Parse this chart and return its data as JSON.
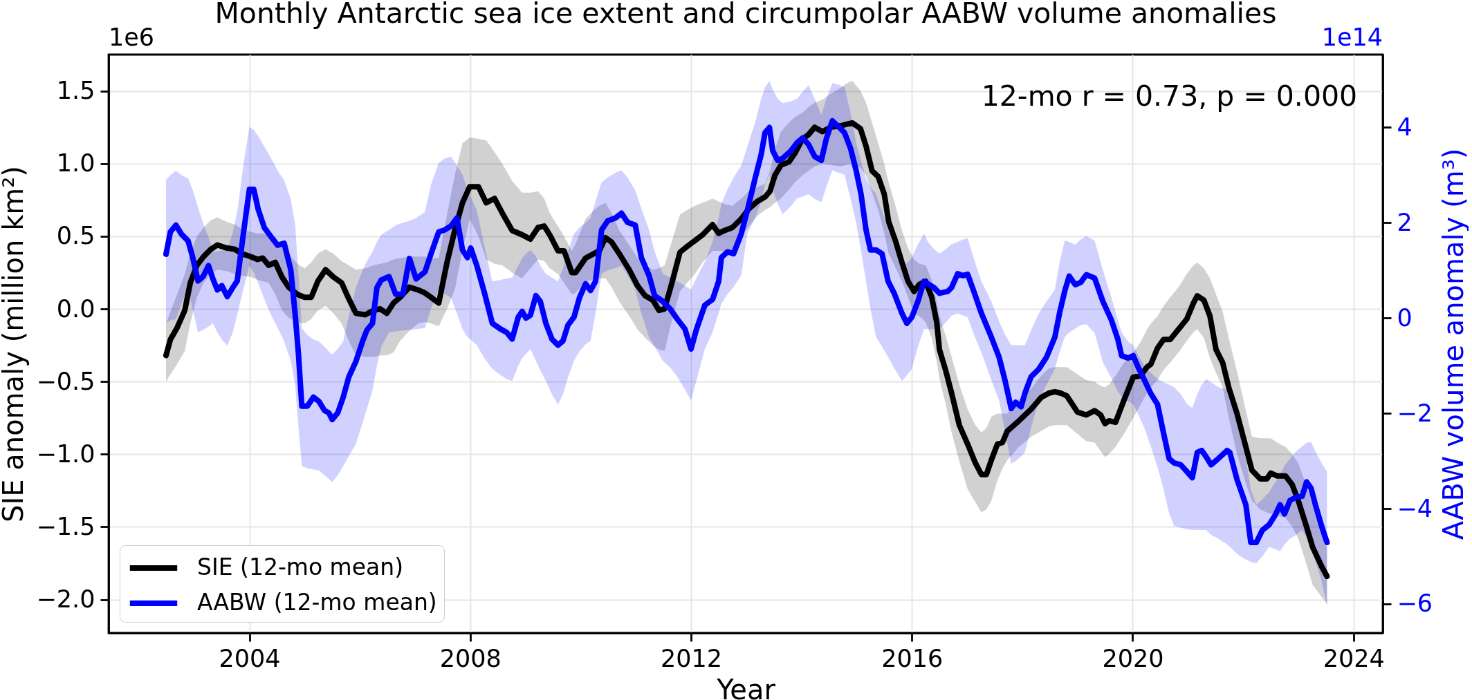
{
  "chart_data": {
    "type": "line",
    "title": "Monthly Antarctic sea ice extent and circumpolar AABW volume anomalies",
    "xlabel": "Year",
    "ylabel": "SIE anomaly (million km²)",
    "y2label": "AABW volume anomaly (m³)",
    "annotations": [
      "12-mo r = 0.73, p = 0.000",
      "1e6",
      "1e14"
    ],
    "xlim": [
      2001.45,
      2024.53
    ],
    "xticks": [
      2004,
      2008,
      2012,
      2016,
      2020,
      2024
    ],
    "ylim": [
      -2.23,
      1.75
    ],
    "yticks": [
      {
        "value": -2,
        "label": "−2.0"
      },
      -1.5,
      {
        "value": -1,
        "label": "−1.0"
      },
      -0.5,
      {
        "value": 0,
        "label": "0.0"
      },
      0.5,
      {
        "value": 1,
        "label": "1.0"
      },
      1.5
    ],
    "y2lim": [
      -6.61,
      5.53
    ],
    "y2ticks": [
      -6,
      -4,
      -2,
      0,
      2,
      4
    ],
    "grid": true,
    "legend": "bottom left",
    "series": [
      {
        "name": "SIE (12-mo mean)",
        "color": "#000000",
        "x": [
          2002.49,
          2002.57,
          2002.69,
          2002.83,
          2002.93,
          2003.05,
          2003.17,
          2003.3,
          2003.42,
          2003.58,
          2003.74,
          2003.86,
          2004.02,
          2004.15,
          2004.24,
          2004.35,
          2004.47,
          2004.59,
          2004.71,
          2004.87,
          2005.0,
          2005.12,
          2005.24,
          2005.38,
          2005.52,
          2005.67,
          2005.8,
          2005.93,
          2006.1,
          2006.25,
          2006.37,
          2006.49,
          2006.61,
          2006.73,
          2006.9,
          2007.06,
          2007.18,
          2007.29,
          2007.43,
          2007.58,
          2007.72,
          2007.86,
          2007.99,
          2008.15,
          2008.29,
          2008.44,
          2008.58,
          2008.76,
          2008.94,
          2009.09,
          2009.23,
          2009.34,
          2009.44,
          2009.59,
          2009.7,
          2009.84,
          2009.91,
          2010.09,
          2010.24,
          2010.34,
          2010.45,
          2010.56,
          2010.7,
          2010.88,
          2011.03,
          2011.17,
          2011.31,
          2011.42,
          2011.52,
          2011.64,
          2011.8,
          2011.93,
          2012.07,
          2012.21,
          2012.39,
          2012.5,
          2012.61,
          2012.75,
          2012.91,
          2013.05,
          2013.2,
          2013.34,
          2013.43,
          2013.52,
          2013.63,
          2013.77,
          2013.88,
          2014.02,
          2014.13,
          2014.24,
          2014.38,
          2014.53,
          2014.71,
          2014.81,
          2014.92,
          2015.07,
          2015.17,
          2015.28,
          2015.39,
          2015.5,
          2015.58,
          2015.71,
          2015.82,
          2015.93,
          2016.04,
          2016.14,
          2016.25,
          2016.36,
          2016.45,
          2016.5,
          2016.61,
          2016.72,
          2016.86,
          2017.01,
          2017.15,
          2017.26,
          2017.35,
          2017.44,
          2017.55,
          2017.64,
          2017.73,
          2017.94,
          2018.16,
          2018.34,
          2018.48,
          2018.59,
          2018.7,
          2018.81,
          2019.0,
          2019.16,
          2019.31,
          2019.42,
          2019.5,
          2019.57,
          2019.69,
          2019.84,
          2020.01,
          2020.14,
          2020.26,
          2020.33,
          2020.45,
          2020.56,
          2020.68,
          2020.83,
          2020.98,
          2021.1,
          2021.17,
          2021.29,
          2021.4,
          2021.51,
          2021.63,
          2021.74,
          2021.89,
          2022.05,
          2022.16,
          2022.31,
          2022.43,
          2022.5,
          2022.62,
          2022.77,
          2022.89,
          2023.0,
          2023.15,
          2023.26,
          2023.42,
          2023.52
        ],
        "values": [
          -0.32,
          -0.21,
          -0.13,
          -0.01,
          0.18,
          0.3,
          0.36,
          0.41,
          0.44,
          0.42,
          0.41,
          0.38,
          0.36,
          0.34,
          0.35,
          0.3,
          0.32,
          0.22,
          0.15,
          0.1,
          0.08,
          0.08,
          0.19,
          0.27,
          0.22,
          0.18,
          0.07,
          -0.03,
          -0.04,
          -0.01,
          0.0,
          -0.03,
          0.04,
          0.08,
          0.15,
          0.13,
          0.11,
          0.08,
          0.04,
          0.32,
          0.54,
          0.73,
          0.84,
          0.84,
          0.73,
          0.76,
          0.66,
          0.54,
          0.51,
          0.48,
          0.56,
          0.57,
          0.51,
          0.4,
          0.4,
          0.25,
          0.25,
          0.35,
          0.38,
          0.4,
          0.49,
          0.46,
          0.38,
          0.27,
          0.16,
          0.09,
          0.06,
          -0.01,
          0.0,
          0.16,
          0.39,
          0.43,
          0.47,
          0.51,
          0.58,
          0.52,
          0.54,
          0.56,
          0.62,
          0.69,
          0.74,
          0.77,
          0.81,
          0.92,
          0.99,
          1.01,
          1.07,
          1.17,
          1.2,
          1.25,
          1.22,
          1.25,
          1.26,
          1.27,
          1.28,
          1.24,
          1.12,
          0.95,
          0.91,
          0.79,
          0.6,
          0.46,
          0.32,
          0.19,
          0.12,
          0.17,
          0.19,
          0.08,
          -0.09,
          -0.28,
          -0.42,
          -0.58,
          -0.8,
          -0.93,
          -1.06,
          -1.14,
          -1.14,
          -1.04,
          -0.93,
          -0.92,
          -0.84,
          -0.77,
          -0.69,
          -0.61,
          -0.58,
          -0.57,
          -0.58,
          -0.6,
          -0.71,
          -0.73,
          -0.7,
          -0.73,
          -0.79,
          -0.77,
          -0.78,
          -0.63,
          -0.47,
          -0.46,
          -0.4,
          -0.38,
          -0.27,
          -0.21,
          -0.21,
          -0.14,
          -0.07,
          0.04,
          0.09,
          0.06,
          -0.05,
          -0.28,
          -0.37,
          -0.54,
          -0.72,
          -0.95,
          -1.11,
          -1.17,
          -1.17,
          -1.13,
          -1.15,
          -1.15,
          -1.21,
          -1.32,
          -1.5,
          -1.64,
          -1.77,
          -1.84
        ],
        "lower": [
          -0.5,
          -0.45,
          -0.38,
          -0.29,
          -0.1,
          0.08,
          0.18,
          0.24,
          0.27,
          0.26,
          0.24,
          0.23,
          0.22,
          0.2,
          0.19,
          0.18,
          0.1,
          -0.01,
          -0.06,
          -0.09,
          -0.1,
          -0.07,
          -0.01,
          0.02,
          -0.03,
          -0.1,
          -0.22,
          -0.32,
          -0.33,
          -0.33,
          -0.32,
          -0.32,
          -0.3,
          -0.22,
          -0.15,
          -0.1,
          -0.09,
          -0.1,
          -0.12,
          0.0,
          0.13,
          0.4,
          0.62,
          0.5,
          0.34,
          0.31,
          0.3,
          0.25,
          0.21,
          0.28,
          0.34,
          0.33,
          0.28,
          0.24,
          0.18,
          0.1,
          0.11,
          0.19,
          0.2,
          0.21,
          0.21,
          0.15,
          0.05,
          -0.05,
          -0.14,
          -0.2,
          -0.25,
          -0.28,
          -0.29,
          -0.1,
          0.12,
          0.18,
          0.24,
          0.32,
          0.4,
          0.4,
          0.4,
          0.4,
          0.5,
          0.57,
          0.64,
          0.68,
          0.7,
          0.73,
          0.76,
          0.82,
          0.87,
          0.92,
          0.95,
          0.98,
          1.0,
          0.99,
          0.98,
          0.99,
          1.0,
          0.97,
          0.92,
          0.8,
          0.68,
          0.52,
          0.38,
          0.28,
          0.19,
          0.08,
          -0.03,
          -0.05,
          -0.09,
          -0.2,
          -0.36,
          -0.48,
          -0.65,
          -0.85,
          -1.05,
          -1.24,
          -1.33,
          -1.4,
          -1.38,
          -1.32,
          -1.18,
          -1.1,
          -1.04,
          -0.95,
          -0.88,
          -0.84,
          -0.81,
          -0.8,
          -0.8,
          -0.8,
          -0.86,
          -0.91,
          -0.92,
          -0.98,
          -1.02,
          -1.0,
          -0.95,
          -0.86,
          -0.75,
          -0.66,
          -0.58,
          -0.54,
          -0.49,
          -0.42,
          -0.37,
          -0.3,
          -0.22,
          -0.16,
          -0.14,
          -0.2,
          -0.34,
          -0.44,
          -0.54,
          -0.75,
          -1.0,
          -1.2,
          -1.32,
          -1.38,
          -1.4,
          -1.41,
          -1.42,
          -1.44,
          -1.5,
          -1.58,
          -1.76,
          -1.9,
          -1.98,
          -2.03
        ],
        "upper": [
          -0.1,
          -0.02,
          0.1,
          0.24,
          0.38,
          0.5,
          0.56,
          0.61,
          0.63,
          0.6,
          0.58,
          0.55,
          0.53,
          0.52,
          0.52,
          0.51,
          0.48,
          0.44,
          0.38,
          0.31,
          0.28,
          0.32,
          0.38,
          0.41,
          0.38,
          0.33,
          0.3,
          0.27,
          0.28,
          0.3,
          0.31,
          0.32,
          0.34,
          0.35,
          0.36,
          0.36,
          0.36,
          0.35,
          0.35,
          0.65,
          0.92,
          1.14,
          1.18,
          1.17,
          1.16,
          1.08,
          1.0,
          0.88,
          0.8,
          0.8,
          0.81,
          0.76,
          0.66,
          0.57,
          0.5,
          0.4,
          0.45,
          0.62,
          0.68,
          0.71,
          0.73,
          0.66,
          0.54,
          0.44,
          0.35,
          0.3,
          0.27,
          0.28,
          0.3,
          0.45,
          0.65,
          0.68,
          0.71,
          0.73,
          0.76,
          0.74,
          0.72,
          0.71,
          0.76,
          0.81,
          0.84,
          0.86,
          0.95,
          1.1,
          1.22,
          1.28,
          1.32,
          1.35,
          1.39,
          1.42,
          1.44,
          1.48,
          1.52,
          1.55,
          1.57,
          1.5,
          1.42,
          1.28,
          1.14,
          1.0,
          0.87,
          0.7,
          0.54,
          0.42,
          0.34,
          0.31,
          0.3,
          0.2,
          0.05,
          -0.05,
          -0.18,
          -0.33,
          -0.52,
          -0.69,
          -0.8,
          -0.85,
          -0.82,
          -0.74,
          -0.72,
          -0.72,
          -0.72,
          -0.62,
          -0.55,
          -0.46,
          -0.41,
          -0.4,
          -0.4,
          -0.4,
          -0.45,
          -0.49,
          -0.5,
          -0.53,
          -0.54,
          -0.52,
          -0.46,
          -0.37,
          -0.3,
          -0.23,
          -0.14,
          -0.1,
          -0.05,
          0.02,
          0.08,
          0.15,
          0.24,
          0.3,
          0.32,
          0.28,
          0.21,
          0.1,
          -0.02,
          -0.2,
          -0.43,
          -0.7,
          -0.88,
          -0.89,
          -0.89,
          -0.89,
          -0.92,
          -0.95,
          -1.0,
          -1.06,
          -1.22,
          -1.35,
          -1.52,
          -1.64
        ]
      },
      {
        "name": "AABW (12-mo mean)",
        "color": "#0000ff",
        "axis": "y2",
        "x": [
          2002.49,
          2002.57,
          2002.67,
          2002.77,
          2002.89,
          2002.97,
          2003.07,
          2003.16,
          2003.26,
          2003.34,
          2003.42,
          2003.5,
          2003.6,
          2003.7,
          2003.78,
          2003.89,
          2004.0,
          2004.08,
          2004.16,
          2004.27,
          2004.39,
          2004.51,
          2004.63,
          2004.75,
          2004.83,
          2004.89,
          2004.95,
          2005.05,
          2005.16,
          2005.26,
          2005.36,
          2005.44,
          2005.5,
          2005.6,
          2005.7,
          2005.8,
          2005.93,
          2006.05,
          2006.13,
          2006.23,
          2006.31,
          2006.39,
          2006.53,
          2006.65,
          2006.78,
          2006.9,
          2007.02,
          2007.18,
          2007.29,
          2007.43,
          2007.54,
          2007.65,
          2007.76,
          2007.86,
          2007.95,
          2008.01,
          2008.12,
          2008.26,
          2008.4,
          2008.55,
          2008.66,
          2008.76,
          2008.87,
          2008.94,
          2009.01,
          2009.09,
          2009.19,
          2009.27,
          2009.37,
          2009.48,
          2009.59,
          2009.68,
          2009.77,
          2009.88,
          2009.98,
          2010.09,
          2010.18,
          2010.27,
          2010.38,
          2010.49,
          2010.63,
          2010.74,
          2010.85,
          2010.99,
          2011.1,
          2011.24,
          2011.34,
          2011.49,
          2011.63,
          2011.75,
          2011.89,
          2012.0,
          2012.1,
          2012.25,
          2012.39,
          2012.5,
          2012.55,
          2012.66,
          2012.77,
          2012.91,
          2013.02,
          2013.16,
          2013.27,
          2013.34,
          2013.42,
          2013.48,
          2013.57,
          2013.66,
          2013.81,
          2013.92,
          2014.02,
          2014.13,
          2014.24,
          2014.36,
          2014.45,
          2014.56,
          2014.67,
          2014.78,
          2014.89,
          2014.99,
          2015.08,
          2015.17,
          2015.25,
          2015.35,
          2015.46,
          2015.57,
          2015.68,
          2015.82,
          2015.91,
          2016.0,
          2016.11,
          2016.22,
          2016.29,
          2016.4,
          2016.5,
          2016.65,
          2016.72,
          2016.83,
          2016.93,
          2017.01,
          2017.11,
          2017.26,
          2017.44,
          2017.58,
          2017.69,
          2017.8,
          2017.88,
          2017.98,
          2018.05,
          2018.16,
          2018.3,
          2018.44,
          2018.59,
          2018.68,
          2018.77,
          2018.85,
          2018.96,
          2019.06,
          2019.16,
          2019.31,
          2019.46,
          2019.61,
          2019.73,
          2019.8,
          2019.92,
          2020.01,
          2020.11,
          2020.22,
          2020.33,
          2020.45,
          2020.56,
          2020.66,
          2020.75,
          2020.87,
          2020.98,
          2021.08,
          2021.17,
          2021.25,
          2021.33,
          2021.42,
          2021.55,
          2021.71,
          2021.76,
          2021.89,
          2022.05,
          2022.14,
          2022.24,
          2022.35,
          2022.47,
          2022.58,
          2022.67,
          2022.75,
          2022.85,
          2022.96,
          2023.07,
          2023.15,
          2023.23,
          2023.31,
          2023.42,
          2023.52
        ],
        "values": [
          1.34,
          1.81,
          1.95,
          1.76,
          1.62,
          1.29,
          0.78,
          0.87,
          1.1,
          0.82,
          0.59,
          0.68,
          0.45,
          0.64,
          0.78,
          1.76,
          2.7,
          2.7,
          2.28,
          1.9,
          1.71,
          1.53,
          1.57,
          1.01,
          0.07,
          -0.77,
          -1.85,
          -1.85,
          -1.66,
          -1.75,
          -1.94,
          -1.99,
          -2.13,
          -1.99,
          -1.66,
          -1.24,
          -0.91,
          -0.49,
          -0.25,
          -0.11,
          0.64,
          0.8,
          0.87,
          0.5,
          0.5,
          1.25,
          0.82,
          0.97,
          1.35,
          1.81,
          1.85,
          1.93,
          2.1,
          1.43,
          1.27,
          1.47,
          1.1,
          0.52,
          -0.11,
          -0.23,
          -0.3,
          -0.44,
          0.02,
          0.14,
          0.0,
          0.06,
          0.47,
          0.35,
          -0.11,
          -0.44,
          -0.57,
          -0.48,
          -0.15,
          0.02,
          0.43,
          0.72,
          0.58,
          0.77,
          1.85,
          2.04,
          2.1,
          2.2,
          2.01,
          1.95,
          1.27,
          0.89,
          0.47,
          0.35,
          0.18,
          -0.02,
          -0.23,
          -0.65,
          -0.23,
          0.27,
          0.39,
          0.77,
          1.27,
          1.39,
          1.35,
          1.77,
          2.26,
          2.93,
          3.43,
          3.89,
          4.0,
          3.51,
          3.31,
          3.35,
          3.51,
          3.68,
          3.78,
          3.64,
          3.39,
          3.31,
          3.76,
          4.14,
          4.02,
          3.89,
          3.56,
          3.1,
          2.6,
          1.85,
          1.43,
          1.43,
          1.35,
          0.77,
          0.52,
          0.1,
          -0.11,
          0.02,
          0.35,
          0.77,
          0.72,
          0.64,
          0.52,
          0.56,
          0.64,
          0.93,
          0.89,
          0.92,
          0.6,
          0.1,
          -0.4,
          -0.82,
          -1.32,
          -1.9,
          -1.77,
          -1.86,
          -1.57,
          -1.23,
          -1.07,
          -0.82,
          -0.4,
          0.13,
          0.57,
          0.88,
          0.7,
          0.75,
          0.91,
          0.84,
          0.35,
          -0.03,
          -0.44,
          -0.79,
          -0.84,
          -0.79,
          -1.06,
          -1.32,
          -1.59,
          -1.81,
          -2.42,
          -2.95,
          -3.04,
          -3.08,
          -3.22,
          -3.35,
          -2.82,
          -2.78,
          -2.91,
          -3.08,
          -2.95,
          -2.78,
          -2.82,
          -3.39,
          -3.92,
          -4.71,
          -4.71,
          -4.45,
          -4.34,
          -4.14,
          -3.92,
          -4.11,
          -3.83,
          -3.76,
          -3.74,
          -3.44,
          -3.57,
          -3.92,
          -4.36,
          -4.71
        ],
        "lower": [
          -0.1,
          -0.05,
          -0.02,
          0.3,
          0.64,
          0.2,
          -0.3,
          -0.25,
          -0.18,
          -0.11,
          -0.3,
          -0.45,
          -0.58,
          -0.3,
          0.07,
          0.6,
          1.1,
          0.95,
          0.73,
          0.4,
          0.07,
          -0.2,
          -0.49,
          -0.9,
          -1.42,
          -2.3,
          -3.11,
          -3.15,
          -3.18,
          -3.2,
          -3.3,
          -3.38,
          -3.44,
          -3.3,
          -3.11,
          -2.9,
          -2.64,
          -2.2,
          -1.9,
          -1.52,
          -1.0,
          -0.6,
          -0.3,
          -0.28,
          -0.26,
          -0.25,
          -0.23,
          -0.21,
          0.2,
          0.6,
          0.5,
          0.43,
          0.1,
          -0.23,
          -0.4,
          -0.45,
          -0.57,
          -0.85,
          -1.07,
          -1.2,
          -1.28,
          -1.32,
          -1.0,
          -0.85,
          -0.75,
          -0.65,
          -0.9,
          -1.1,
          -1.32,
          -1.6,
          -1.82,
          -1.6,
          -1.25,
          -0.9,
          -0.7,
          -0.55,
          -0.48,
          0.1,
          0.93,
          1.0,
          1.05,
          1.1,
          0.9,
          0.6,
          0.1,
          -0.4,
          -0.6,
          -0.9,
          -1.05,
          -1.23,
          -1.5,
          -1.73,
          -1.3,
          -0.65,
          -0.3,
          0.1,
          0.3,
          0.5,
          0.65,
          0.9,
          1.77,
          2.1,
          2.43,
          2.8,
          3.01,
          2.7,
          2.4,
          2.18,
          2.35,
          2.51,
          2.55,
          2.6,
          2.5,
          2.43,
          2.75,
          3.1,
          3.05,
          3.01,
          2.5,
          2.01,
          1.4,
          0.77,
          0.2,
          -0.4,
          -0.6,
          -0.82,
          -1.05,
          -1.32,
          -1.2,
          -1.07,
          -0.6,
          -0.23,
          -0.23,
          -0.23,
          -0.23,
          -0.05,
          0.05,
          0.1,
          0.05,
          0.02,
          -0.3,
          -0.73,
          -1.3,
          -1.73,
          -2.4,
          -3.06,
          -3.0,
          -2.9,
          -2.81,
          -2.3,
          -1.73,
          -1.4,
          -1.07,
          -0.7,
          -0.4,
          -0.3,
          -0.22,
          -0.15,
          -0.13,
          -0.31,
          -0.93,
          -1.25,
          -1.54,
          -1.65,
          -1.75,
          -1.81,
          -2.05,
          -2.33,
          -2.7,
          -3.13,
          -3.6,
          -4.1,
          -4.36,
          -4.4,
          -4.43,
          -4.45,
          -4.45,
          -4.45,
          -4.45,
          -4.55,
          -4.63,
          -4.75,
          -4.8,
          -4.95,
          -5.07,
          -5.12,
          -5.15,
          -5.0,
          -4.8,
          -4.85,
          -4.89,
          -4.75,
          -4.63,
          -4.55,
          -4.45,
          -4.6,
          -4.8,
          -5.1,
          -5.51,
          -6.04
        ],
        "upper": [
          2.9,
          3.0,
          3.09,
          3.0,
          2.93,
          2.7,
          2.32,
          2.0,
          1.7,
          1.39,
          1.4,
          1.42,
          1.43,
          1.8,
          2.23,
          3.2,
          4.01,
          3.95,
          3.82,
          3.6,
          3.36,
          3.1,
          2.89,
          2.5,
          1.95,
          0.9,
          -0.21,
          -0.35,
          -0.45,
          -0.49,
          -0.6,
          -0.7,
          -0.77,
          -0.65,
          -0.49,
          0.05,
          0.64,
          1.0,
          1.2,
          1.39,
          1.6,
          1.75,
          1.85,
          1.95,
          2.0,
          2.04,
          2.1,
          2.23,
          2.8,
          3.26,
          3.35,
          3.39,
          3.2,
          3.01,
          2.7,
          2.55,
          2.26,
          1.5,
          0.77,
          0.8,
          0.83,
          0.85,
          1.1,
          1.25,
          1.35,
          1.43,
          1.3,
          1.1,
          0.93,
          0.85,
          0.77,
          1.05,
          1.4,
          1.77,
          1.9,
          2.0,
          2.1,
          2.45,
          2.85,
          2.95,
          3.05,
          3.1,
          2.95,
          2.68,
          2.3,
          1.85,
          1.4,
          0.93,
          0.85,
          0.77,
          0.68,
          0.6,
          0.85,
          1.18,
          1.6,
          2.1,
          2.4,
          2.7,
          2.95,
          3.2,
          3.6,
          4.1,
          4.6,
          4.85,
          4.97,
          4.8,
          4.6,
          4.51,
          4.55,
          4.6,
          4.75,
          4.89,
          4.6,
          4.26,
          4.6,
          4.93,
          4.9,
          4.85,
          4.3,
          3.68,
          3.3,
          2.93,
          2.75,
          2.6,
          2.25,
          1.85,
          1.5,
          1.1,
          1.15,
          1.27,
          1.55,
          1.77,
          1.6,
          1.45,
          1.35,
          1.48,
          1.55,
          1.6,
          1.65,
          1.68,
          1.3,
          0.77,
          0.35,
          -0.07,
          -0.35,
          -0.57,
          -0.57,
          -0.57,
          -0.57,
          -0.25,
          0.1,
          0.35,
          0.6,
          1.2,
          1.63,
          1.6,
          1.54,
          1.65,
          1.72,
          1.63,
          1.01,
          0.45,
          -0.04,
          -0.3,
          -0.5,
          -0.57,
          -0.8,
          -1.01,
          -1.15,
          -1.28,
          -1.35,
          -1.4,
          -1.45,
          -1.6,
          -1.8,
          -1.89,
          -1.6,
          -1.4,
          -1.28,
          -1.35,
          -1.45,
          -1.5,
          -1.54,
          -2.2,
          -2.95,
          -3.6,
          -3.92,
          -3.8,
          -3.66,
          -3.45,
          -3.3,
          -3.1,
          -2.95,
          -2.8,
          -2.69,
          -2.62,
          -2.6,
          -2.8,
          -3.04,
          -3.22
        ]
      }
    ]
  }
}
